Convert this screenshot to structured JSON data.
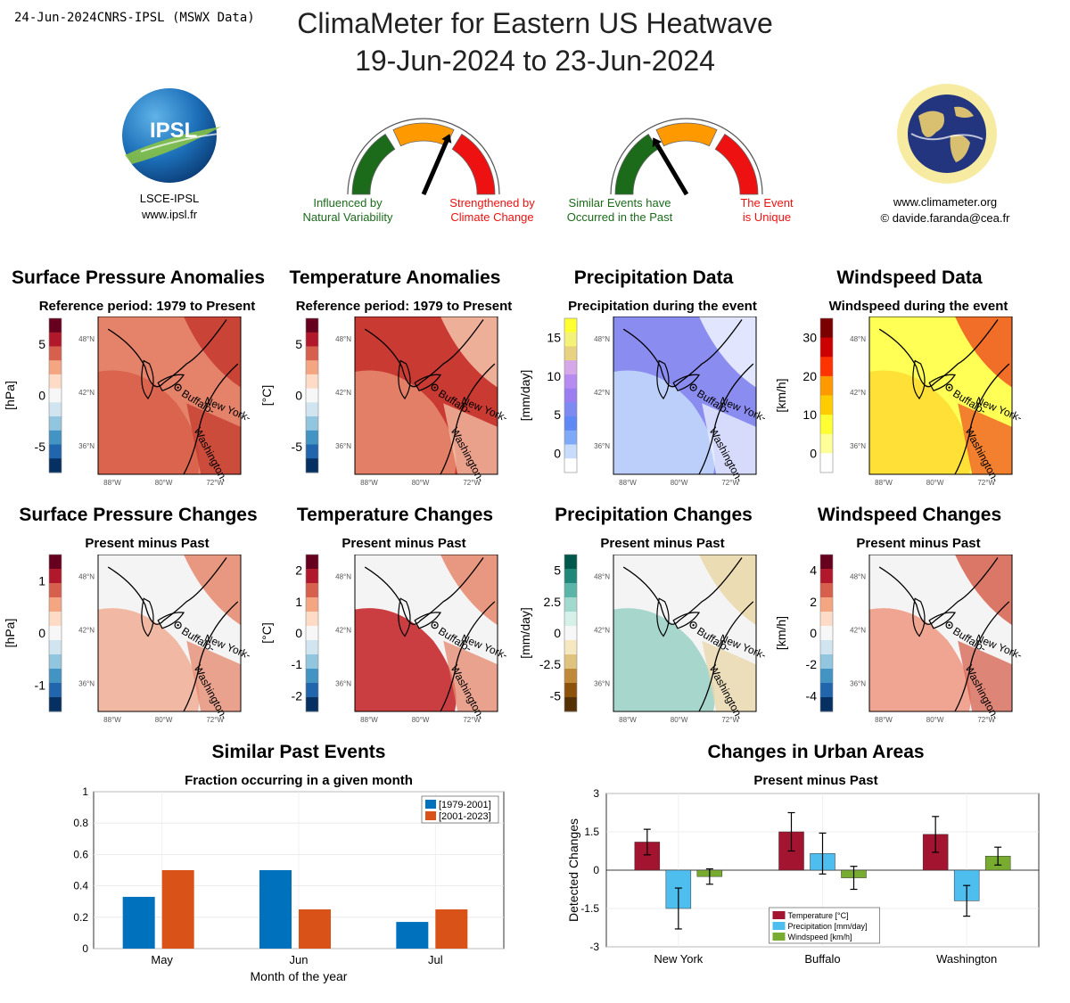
{
  "header": {
    "stamp": "24-Jun-2024CNRS-IPSL (MSWX Data)",
    "title_line1": "ClimaMeter for Eastern US Heatwave",
    "title_line2": "19-Jun-2024 to 23-Jun-2024"
  },
  "logos": {
    "ipsl_text": "IPSL",
    "ipsl_caption1": "LSCE-IPSL",
    "ipsl_caption2": "www.ipsl.fr",
    "climameter_caption1": "www.climameter.org",
    "climameter_caption2": "© davide.faranda@cea.fr"
  },
  "gauges": [
    {
      "left_label1": "Influenced by",
      "left_label2": "Natural Variability",
      "right_label1": "Strengthened by",
      "right_label2": "Climate Change",
      "needle_fraction": 0.63,
      "colors": {
        "left": "#1b6b1b",
        "mid": "#ff9900",
        "right": "#ee1111"
      }
    },
    {
      "left_label1": "Similar Events have",
      "left_label2": "Occurred in the Past",
      "right_label1": "The Event",
      "right_label2": "is Unique",
      "needle_fraction": 0.33,
      "colors": {
        "left": "#1b6b1b",
        "mid": "#ff9900",
        "right": "#ee1111"
      }
    }
  ],
  "maps": {
    "lat_labels": [
      "48°N",
      "42°N",
      "36°N"
    ],
    "lon_labels": [
      "88°W",
      "80°W",
      "72°W"
    ],
    "cities": [
      "Buffalo",
      "New York",
      "Washington"
    ],
    "row1": [
      {
        "title": "Surface Pressure Anomalies",
        "subtitle": "Reference period: 1979 to Present",
        "unit": "[hPa]",
        "ticks": [
          "5",
          "0",
          "-5"
        ]
      },
      {
        "title": "Temperature Anomalies",
        "subtitle": "Reference period: 1979 to Present",
        "unit": "[°C]",
        "ticks": [
          "5",
          "0",
          "-5"
        ]
      },
      {
        "title": "Precipitation Data",
        "subtitle": "Precipitation during the event",
        "unit": "[mm/day]",
        "ticks": [
          "15",
          "10",
          "5",
          "0"
        ]
      },
      {
        "title": "Windspeed Data",
        "subtitle": "Windspeed during the event",
        "unit": "[km/h]",
        "ticks": [
          "30",
          "20",
          "10",
          "0"
        ]
      }
    ],
    "row2": [
      {
        "title": "Surface Pressure Changes",
        "subtitle": "Present minus Past",
        "unit": "[hPa]",
        "ticks": [
          "1",
          "0",
          "-1"
        ]
      },
      {
        "title": "Temperature Changes",
        "subtitle": "Present minus Past",
        "unit": "[°C]",
        "ticks": [
          "2",
          "1",
          "0",
          "-1",
          "-2"
        ]
      },
      {
        "title": "Precipitation Changes",
        "subtitle": "Present minus Past",
        "unit": "[mm/day]",
        "ticks": [
          "5",
          "2.5",
          "0",
          "-2.5",
          "-5"
        ]
      },
      {
        "title": "Windspeed Changes",
        "subtitle": "Present minus Past",
        "unit": "[km/h]",
        "ticks": [
          "4",
          "2",
          "0",
          "-2",
          "-4"
        ]
      }
    ]
  },
  "chart_data": [
    {
      "type": "bar",
      "title": "Similar Past Events",
      "subtitle": "Fraction occurring in a given month",
      "xlabel": "Month of the year",
      "ylabel": "",
      "categories": [
        "May",
        "Jun",
        "Jul"
      ],
      "series": [
        {
          "name": "[1979-2001]",
          "color": "#0072bd",
          "values": [
            0.33,
            0.5,
            0.17
          ]
        },
        {
          "name": "[2001-2023]",
          "color": "#d95319",
          "values": [
            0.5,
            0.25,
            0.25
          ]
        }
      ],
      "ylim": [
        0,
        1
      ],
      "yticks": [
        "0",
        "0.2",
        "0.4",
        "0.6",
        "0.8",
        "1"
      ],
      "legend": "top-right",
      "grid": true
    },
    {
      "type": "bar",
      "title": "Changes in Urban Areas",
      "subtitle": "Present minus Past",
      "xlabel": "",
      "ylabel": "Detected Changes",
      "categories": [
        "New York",
        "Buffalo",
        "Washington"
      ],
      "series": [
        {
          "name": "Temperature [°C]",
          "color": "#a2142f",
          "values": [
            1.1,
            1.5,
            1.4
          ],
          "err": [
            0.5,
            0.75,
            0.7
          ]
        },
        {
          "name": "Precipitation [mm/day]",
          "color": "#4dbeee",
          "values": [
            -1.5,
            0.65,
            -1.2
          ],
          "err": [
            0.8,
            0.8,
            0.6
          ]
        },
        {
          "name": "Windspeed [km/h]",
          "color": "#77ac30",
          "values": [
            -0.25,
            -0.3,
            0.55
          ],
          "err": [
            0.3,
            0.45,
            0.35
          ]
        }
      ],
      "ylim": [
        -3,
        3
      ],
      "yticks": [
        "3",
        "1.5",
        "0",
        "-1.5",
        "-3"
      ],
      "legend": "bottom-center",
      "grid": true
    }
  ]
}
